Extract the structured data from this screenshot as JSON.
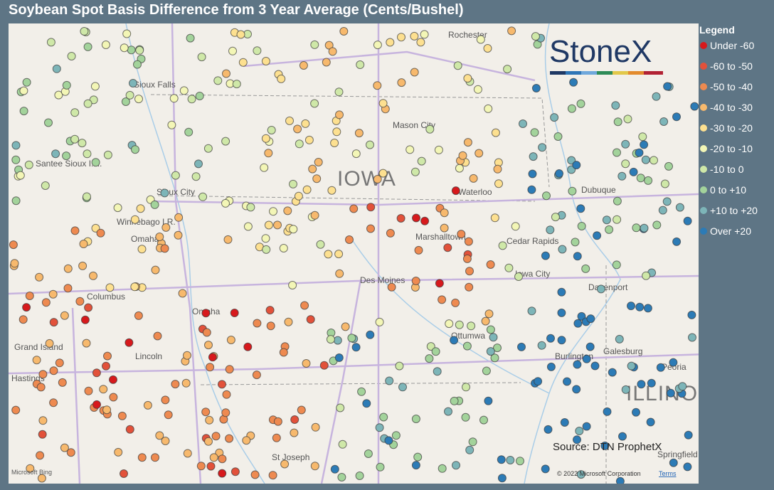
{
  "title": "Soybean Spot Basis Difference from 3 Year Average (Cents/Bushel)",
  "legend": {
    "title": "Legend",
    "items": [
      {
        "label": "Under -60",
        "color": "#d7191c"
      },
      {
        "label": "-60 to -50",
        "color": "#e2513a"
      },
      {
        "label": "-50 to -40",
        "color": "#ee8a50"
      },
      {
        "label": "-40 to -30",
        "color": "#f7b96d"
      },
      {
        "label": "-30 to -20",
        "color": "#fde090"
      },
      {
        "label": "-20 to -10",
        "color": "#f3f6b6"
      },
      {
        "label": "-10 to 0",
        "color": "#cfe8a8"
      },
      {
        "label": "0 to +10",
        "color": "#a3d39b"
      },
      {
        "label": "+10 to +20",
        "color": "#7db5b8"
      },
      {
        "label": "Over +20",
        "color": "#2c7bb6"
      }
    ]
  },
  "logo": "StoneX",
  "source": "Source: DTN ProphetX",
  "bing": "Microsoft Bing",
  "copyright": "© 2022 Microsoft Corporation",
  "terms": "Terms",
  "states": [
    "IOWA",
    "ILLINOIS"
  ],
  "places": [
    "Rochester",
    "Sioux Falls",
    "Mason City",
    "Santee Sioux I.R.",
    "Sioux City",
    "Waterloo",
    "Dubuque",
    "Winnebago I.R.",
    "Omaha",
    "Marshalltown",
    "Cedar Rapids",
    "Iowa City",
    "Columbus",
    "Des Moines",
    "Davenport",
    "Omaha",
    "Grand Island",
    "Ottumwa",
    "Lincoln",
    "Galesburg",
    "Burlington",
    "Hastings",
    "Peoria",
    "St Joseph",
    "Springfield"
  ]
}
